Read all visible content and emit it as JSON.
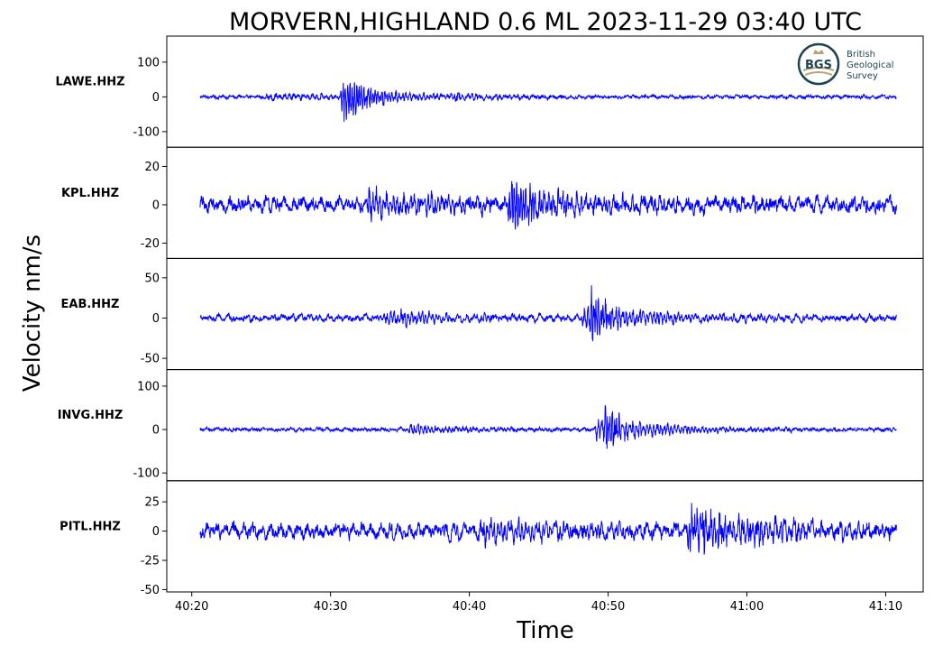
{
  "chart_data": {
    "type": "line",
    "title": "MORVERN,HIGHLAND 0.6 ML   2023-11-29 03:40 UTC",
    "xlabel": "Time",
    "ylabel": "Velocity nm/s",
    "x_ticks": [
      "40:20",
      "40:30",
      "40:40",
      "40:50",
      "41:00",
      "41:10"
    ],
    "x_tick_seconds": [
      0,
      10,
      20,
      30,
      40,
      50
    ],
    "xlim_seconds": [
      -1.8,
      52.7
    ],
    "trace_window_seconds": [
      0.6,
      50.8
    ],
    "line_color": "#0000ff",
    "logo": {
      "abbrev": "BGS",
      "lines": [
        "British",
        "Geological",
        "Survey"
      ]
    },
    "series": [
      {
        "name": "LAWE.HHZ",
        "ylim": [
          -145,
          175
        ],
        "yticks": [
          100,
          0,
          -100
        ],
        "ytick_labels": [
          "100",
          "0",
          "-100"
        ],
        "noise": 3.5,
        "events": [
          {
            "t": 5.3,
            "amp": 10,
            "decay": 12,
            "freq": 3
          },
          {
            "t": 10.7,
            "amp": 80,
            "decay": 1.8,
            "freq": 6
          },
          {
            "t": 11.4,
            "amp": 20,
            "decay": 5,
            "freq": 4
          },
          {
            "t": 18.8,
            "amp": 12,
            "decay": 6,
            "freq": 3
          }
        ]
      },
      {
        "name": "KPL.HHZ",
        "ylim": [
          -28,
          30
        ],
        "yticks": [
          20,
          0,
          -20
        ],
        "ytick_labels": [
          "20",
          "0",
          "-20"
        ],
        "noise": 2.8,
        "events": [
          {
            "t": 12.5,
            "amp": 7,
            "decay": 6,
            "freq": 4
          },
          {
            "t": 22.7,
            "amp": 14,
            "decay": 2.5,
            "freq": 6
          },
          {
            "t": 23.0,
            "amp": 6,
            "decay": 10,
            "freq": 3
          }
        ]
      },
      {
        "name": "EAB.HHZ",
        "ylim": [
          -64,
          74
        ],
        "yticks": [
          50,
          0,
          -50
        ],
        "ytick_labels": [
          "50",
          "0",
          "-50"
        ],
        "noise": 3.0,
        "events": [
          {
            "t": 13.8,
            "amp": 10,
            "decay": 5,
            "freq": 4
          },
          {
            "t": 28.0,
            "amp": 16,
            "decay": 6,
            "freq": 4
          },
          {
            "t": 28.6,
            "amp": 35,
            "decay": 1.3,
            "freq": 6
          }
        ]
      },
      {
        "name": "INVG.HHZ",
        "ylim": [
          -118,
          138
        ],
        "yticks": [
          100,
          0,
          -100
        ],
        "ytick_labels": [
          "100",
          "0",
          "-100"
        ],
        "noise": 3.0,
        "events": [
          {
            "t": 15.5,
            "amp": 12,
            "decay": 5,
            "freq": 4
          },
          {
            "t": 29.0,
            "amp": 30,
            "decay": 5,
            "freq": 4
          },
          {
            "t": 29.6,
            "amp": 70,
            "decay": 1.0,
            "freq": 6
          }
        ]
      },
      {
        "name": "PITL.HHZ",
        "ylim": [
          -52,
          43
        ],
        "yticks": [
          25,
          0,
          -25,
          -50
        ],
        "ytick_labels": [
          "25",
          "0",
          "-25",
          "-50"
        ],
        "noise": 4.5,
        "events": [
          {
            "t": 20.5,
            "amp": 8,
            "decay": 8,
            "freq": 4
          },
          {
            "t": 35.6,
            "amp": 22,
            "decay": 3.5,
            "freq": 5
          },
          {
            "t": 36.0,
            "amp": 10,
            "decay": 12,
            "freq": 3
          }
        ]
      }
    ]
  }
}
